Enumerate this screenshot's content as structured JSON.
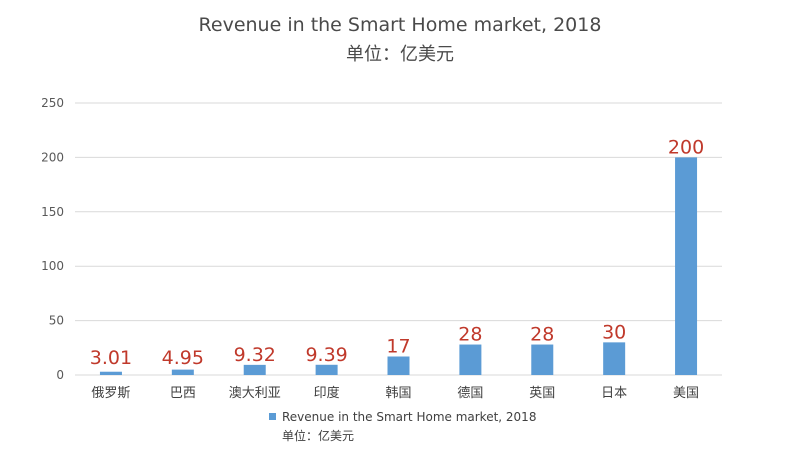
{
  "chart_data": {
    "type": "bar",
    "title": "Revenue in the Smart Home market, 2018",
    "subtitle": "单位：亿美元",
    "categories": [
      "俄罗斯",
      "巴西",
      "澳大利亚",
      "印度",
      "韩国",
      "德国",
      "英国",
      "日本",
      "美国"
    ],
    "series": [
      {
        "name": "Revenue in the Smart Home market, 2018",
        "values": [
          3.01,
          4.95,
          9.32,
          9.39,
          17,
          28,
          28,
          30,
          200
        ]
      }
    ],
    "data_labels": [
      "3.01",
      "4.95",
      "9.32",
      "9.39",
      "17",
      "28",
      "28",
      "30",
      "200"
    ],
    "yticks": [
      "0",
      "50",
      "100",
      "150",
      "200",
      "250"
    ],
    "ylim": [
      0,
      250
    ],
    "grid": true,
    "legend": {
      "position": "bottom",
      "label": "Revenue in the Smart Home market, 2018",
      "sublabel": "单位：亿美元"
    },
    "colors": {
      "bar": "#5b9bd5",
      "data_label": "#c0392b",
      "grid": "#d9d9d9"
    }
  }
}
